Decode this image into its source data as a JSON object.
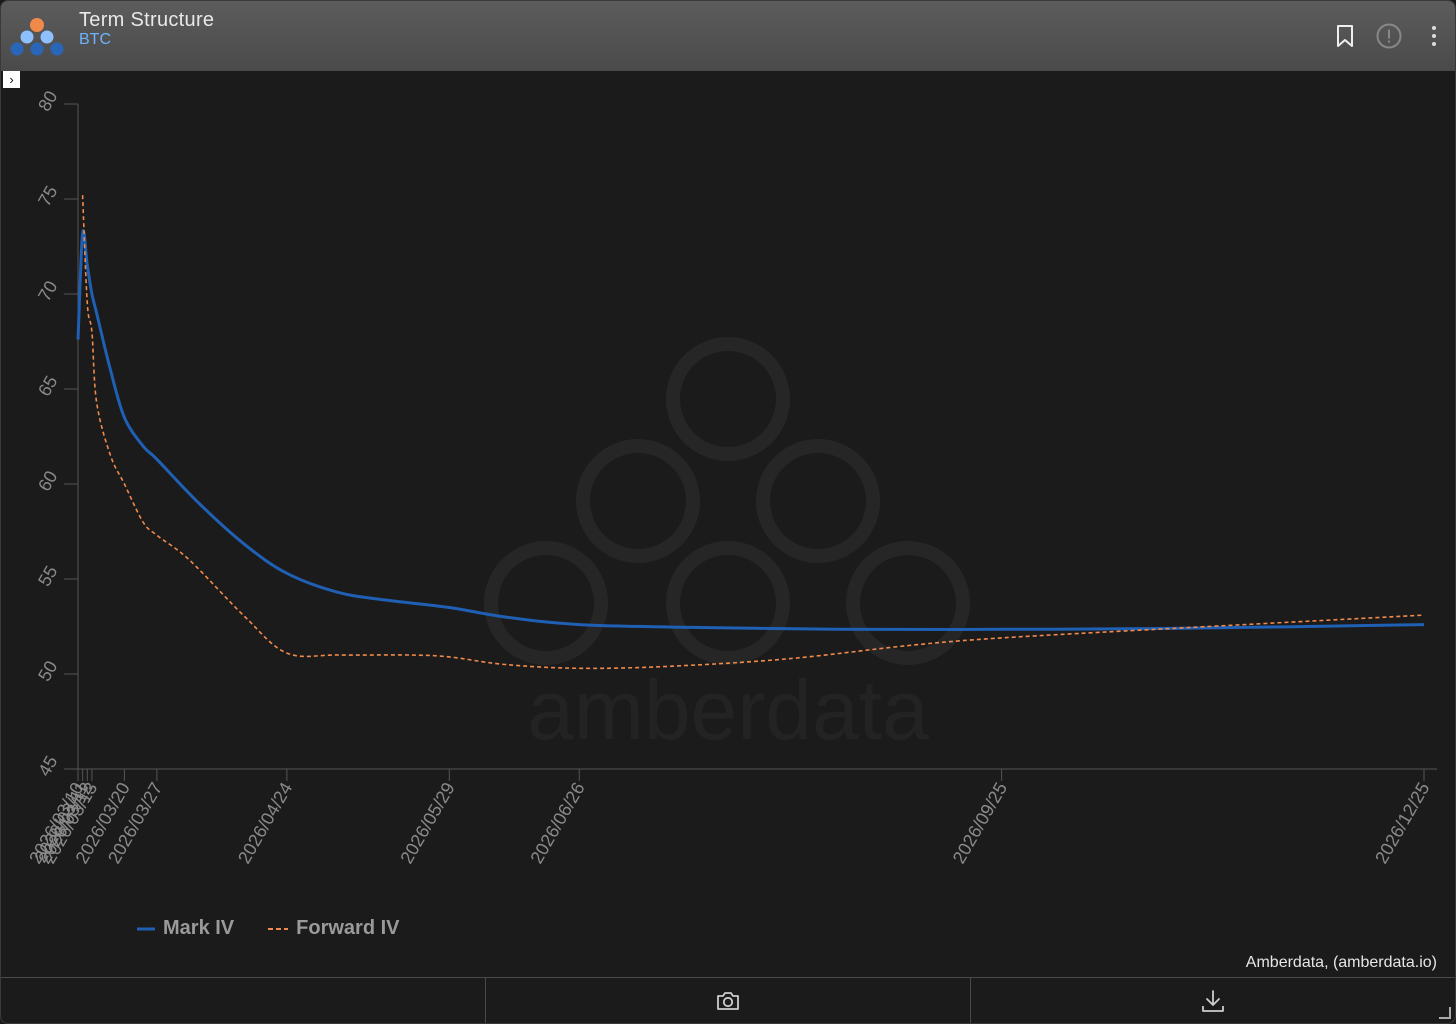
{
  "header": {
    "title": "Term Structure",
    "subtitle": "BTC",
    "icons": [
      "bookmark-icon",
      "info-icon",
      "more-vertical-icon"
    ]
  },
  "expander_glyph": "›",
  "attribution": "Amberdata, (amberdata.io)",
  "watermark_text": "amberdata",
  "colors": {
    "mark_iv": "#1f5fb4",
    "forward_iv": "#f08a4b",
    "accent": "#6fb3ff"
  },
  "footer": {
    "icons": [
      "camera-icon",
      "download-icon"
    ]
  },
  "chart_data": {
    "type": "line",
    "ylim": [
      45,
      80
    ],
    "yticks": [
      45,
      50,
      55,
      60,
      65,
      70,
      75,
      80
    ],
    "xticks": [
      {
        "label": "2026/03/10",
        "date": "2026-03-10"
      },
      {
        "label": "2026/03/11",
        "date": "2026-03-11"
      },
      {
        "label": "2026/03/12",
        "date": "2026-03-12"
      },
      {
        "label": "2026/03/13",
        "date": "2026-03-13"
      },
      {
        "label": "2026/03/20",
        "date": "2026-03-20"
      },
      {
        "label": "2026/03/27",
        "date": "2026-03-27"
      },
      {
        "label": "2026/04/24",
        "date": "2026-04-24"
      },
      {
        "label": "2026/05/29",
        "date": "2026-05-29"
      },
      {
        "label": "2026/06/26",
        "date": "2026-06-26"
      },
      {
        "label": "2026/09/25",
        "date": "2026-09-25"
      },
      {
        "label": "2026/12/25",
        "date": "2026-12-25"
      }
    ],
    "series": [
      {
        "name": "Mark IV",
        "style": "solid",
        "points": [
          [
            "2026-03-10",
            67.6
          ],
          [
            "2026-03-11",
            73.2
          ],
          [
            "2026-03-12",
            71.5
          ],
          [
            "2026-03-13",
            70.0
          ],
          [
            "2026-03-14",
            69.0
          ],
          [
            "2026-03-17",
            66.0
          ],
          [
            "2026-03-20",
            63.5
          ],
          [
            "2026-03-24",
            62.0
          ],
          [
            "2026-03-27",
            61.3
          ],
          [
            "2026-04-05",
            59.0
          ],
          [
            "2026-04-15",
            56.8
          ],
          [
            "2026-04-24",
            55.3
          ],
          [
            "2026-05-05",
            54.3
          ],
          [
            "2026-05-15",
            53.9
          ],
          [
            "2026-05-29",
            53.5
          ],
          [
            "2026-06-10",
            53.0
          ],
          [
            "2026-06-26",
            52.6
          ],
          [
            "2026-07-20",
            52.45
          ],
          [
            "2026-08-20",
            52.35
          ],
          [
            "2026-09-25",
            52.35
          ],
          [
            "2026-11-01",
            52.4
          ],
          [
            "2026-12-25",
            52.6
          ]
        ]
      },
      {
        "name": "Forward IV",
        "style": "dashed",
        "points": [
          [
            "2026-03-11",
            75.2
          ],
          [
            "2026-03-12",
            69.5
          ],
          [
            "2026-03-13",
            68.0
          ],
          [
            "2026-03-14",
            64.3
          ],
          [
            "2026-03-17",
            61.5
          ],
          [
            "2026-03-20",
            60.0
          ],
          [
            "2026-03-24",
            58.0
          ],
          [
            "2026-03-27",
            57.3
          ],
          [
            "2026-04-03",
            56.0
          ],
          [
            "2026-04-15",
            53.0
          ],
          [
            "2026-04-24",
            51.1
          ],
          [
            "2026-05-05",
            51.0
          ],
          [
            "2026-05-20",
            51.0
          ],
          [
            "2026-05-29",
            50.9
          ],
          [
            "2026-06-10",
            50.5
          ],
          [
            "2026-06-26",
            50.3
          ],
          [
            "2026-07-15",
            50.4
          ],
          [
            "2026-08-10",
            50.8
          ],
          [
            "2026-09-05",
            51.5
          ],
          [
            "2026-09-25",
            51.9
          ],
          [
            "2026-11-01",
            52.4
          ],
          [
            "2026-12-25",
            53.1
          ]
        ]
      }
    ]
  }
}
